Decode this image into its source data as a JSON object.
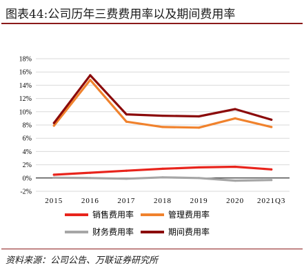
{
  "title": "图表44:公司历年三费费用率以及期间费用率",
  "source": "资料来源：公司公告、万联证券研究所",
  "colors": {
    "brand": "#8b1a1a",
    "grid": "#d9d9d9",
    "axis": "#000000"
  },
  "chart_data": {
    "type": "line",
    "categories": [
      "2015",
      "2016",
      "2017",
      "2018",
      "2019",
      "2020",
      "2021Q3"
    ],
    "yticks": [
      "18%",
      "16%",
      "14%",
      "12%",
      "10%",
      "8%",
      "6%",
      "4%",
      "2%",
      "0%",
      "-2%"
    ],
    "ylim": [
      -2,
      18
    ],
    "unit": "%",
    "grid": true,
    "legend_position": "bottom",
    "series": [
      {
        "name": "销售费用率",
        "color": "#e8241c",
        "values": [
          0.5,
          0.8,
          1.1,
          1.4,
          1.6,
          1.7,
          1.3
        ]
      },
      {
        "name": "管理费用率",
        "color": "#f0822d",
        "values": [
          7.9,
          14.8,
          8.5,
          7.7,
          7.6,
          9.0,
          7.7
        ]
      },
      {
        "name": "财务费用率",
        "color": "#a6a6a6",
        "values": [
          0.05,
          0.0,
          -0.1,
          0.1,
          0.0,
          -0.4,
          -0.3
        ]
      },
      {
        "name": "期间费用率",
        "color": "#8b0a0a",
        "values": [
          8.3,
          15.5,
          9.6,
          9.4,
          9.3,
          10.4,
          8.8
        ]
      }
    ]
  }
}
